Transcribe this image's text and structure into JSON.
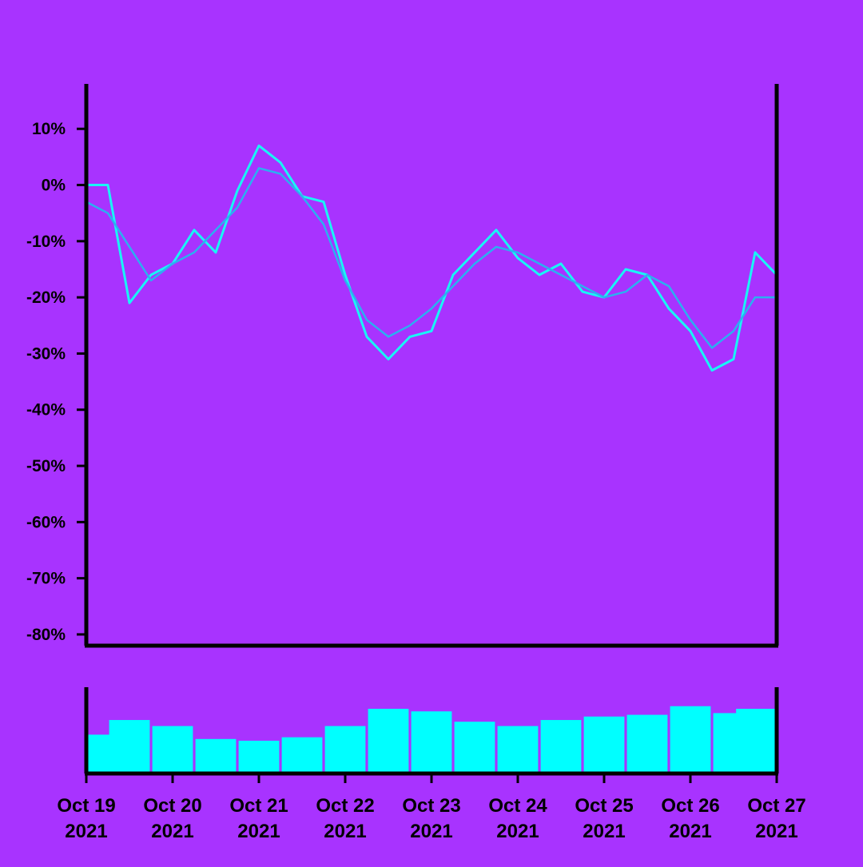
{
  "colors": {
    "background": "#a833ff",
    "price_line": "#19f5f5",
    "moving_average_line": "#2bb0f0",
    "volume_bars": "#00ffff",
    "axes": "#000000"
  },
  "chart_data": [
    {
      "type": "line",
      "series": [
        {
          "kind": "price",
          "x": [
            "Oct 19 00:00",
            "Oct 19 06:00",
            "Oct 19 12:00",
            "Oct 19 18:00",
            "Oct 20 00:00",
            "Oct 20 06:00",
            "Oct 20 12:00",
            "Oct 20 18:00",
            "Oct 21 00:00",
            "Oct 21 06:00",
            "Oct 21 12:00",
            "Oct 21 18:00",
            "Oct 22 00:00",
            "Oct 22 06:00",
            "Oct 22 12:00",
            "Oct 22 18:00",
            "Oct 23 00:00",
            "Oct 23 06:00",
            "Oct 23 12:00",
            "Oct 23 18:00",
            "Oct 24 00:00",
            "Oct 24 06:00",
            "Oct 24 12:00",
            "Oct 24 18:00",
            "Oct 25 00:00",
            "Oct 25 06:00",
            "Oct 25 12:00",
            "Oct 25 18:00",
            "Oct 26 00:00",
            "Oct 26 06:00",
            "Oct 26 12:00",
            "Oct 26 18:00",
            "Oct 27 00:00"
          ],
          "values": [
            0,
            0,
            -21,
            -16,
            -14,
            -8,
            -12,
            -1,
            7,
            4,
            -2,
            -3,
            -16,
            -27,
            -31,
            -27,
            -26,
            -16,
            -12,
            -8,
            -13,
            -16,
            -14,
            -19,
            -20,
            -15,
            -16,
            -22,
            -26,
            -33,
            -31,
            -12,
            -16
          ]
        },
        {
          "kind": "moving_average",
          "x": [
            "Oct 19 00:00",
            "Oct 19 06:00",
            "Oct 19 12:00",
            "Oct 19 18:00",
            "Oct 20 00:00",
            "Oct 20 06:00",
            "Oct 20 12:00",
            "Oct 20 18:00",
            "Oct 21 00:00",
            "Oct 21 06:00",
            "Oct 21 12:00",
            "Oct 21 18:00",
            "Oct 22 00:00",
            "Oct 22 06:00",
            "Oct 22 12:00",
            "Oct 22 18:00",
            "Oct 23 00:00",
            "Oct 23 06:00",
            "Oct 23 12:00",
            "Oct 23 18:00",
            "Oct 24 00:00",
            "Oct 24 06:00",
            "Oct 24 12:00",
            "Oct 24 18:00",
            "Oct 25 00:00",
            "Oct 25 06:00",
            "Oct 25 12:00",
            "Oct 25 18:00",
            "Oct 26 00:00",
            "Oct 26 06:00",
            "Oct 26 12:00",
            "Oct 26 18:00",
            "Oct 27 00:00"
          ],
          "values": [
            -3,
            -5,
            -11,
            -17,
            -14,
            -12,
            -8,
            -4,
            3,
            2,
            -2,
            -7,
            -17,
            -24,
            -27,
            -25,
            -22,
            -18,
            -14,
            -11,
            -12,
            -14,
            -16,
            -18,
            -20,
            -19,
            -16,
            -18,
            -24,
            -29,
            -26,
            -20,
            -20
          ]
        }
      ],
      "x_tick_labels": [
        [
          "Oct 19",
          "2021"
        ],
        [
          "Oct 20",
          "2021"
        ],
        [
          "Oct 21",
          "2021"
        ],
        [
          "Oct 22",
          "2021"
        ],
        [
          "Oct 23",
          "2021"
        ],
        [
          "Oct 24",
          "2021"
        ],
        [
          "Oct 25",
          "2021"
        ],
        [
          "Oct 26",
          "2021"
        ],
        [
          "Oct 27",
          "2021"
        ]
      ],
      "y_ticks": [
        10,
        0,
        -10,
        -20,
        -30,
        -40,
        -50,
        -60,
        -70,
        -80
      ],
      "y_tick_labels": [
        "10%",
        "0%",
        "-10%",
        "-20%",
        "-30%",
        "-40%",
        "-50%",
        "-60%",
        "-70%",
        "-80%"
      ],
      "ylim": [
        -82,
        18
      ],
      "grid": false,
      "legend": "none"
    },
    {
      "type": "bar",
      "kind": "volume",
      "x": [
        "Oct 19",
        "Oct 19 12:00",
        "Oct 20",
        "Oct 20 12:00",
        "Oct 21",
        "Oct 21 12:00",
        "Oct 22",
        "Oct 22 12:00",
        "Oct 23",
        "Oct 23 12:00",
        "Oct 24",
        "Oct 24 12:00",
        "Oct 25",
        "Oct 25 12:00",
        "Oct 26",
        "Oct 26 12:00",
        "Oct 27"
      ],
      "values": [
        0.45,
        0.62,
        0.55,
        0.4,
        0.38,
        0.42,
        0.55,
        0.75,
        0.72,
        0.6,
        0.55,
        0.62,
        0.66,
        0.68,
        0.78,
        0.7,
        0.75
      ],
      "ylim": [
        0,
        1
      ],
      "grid": false
    }
  ]
}
